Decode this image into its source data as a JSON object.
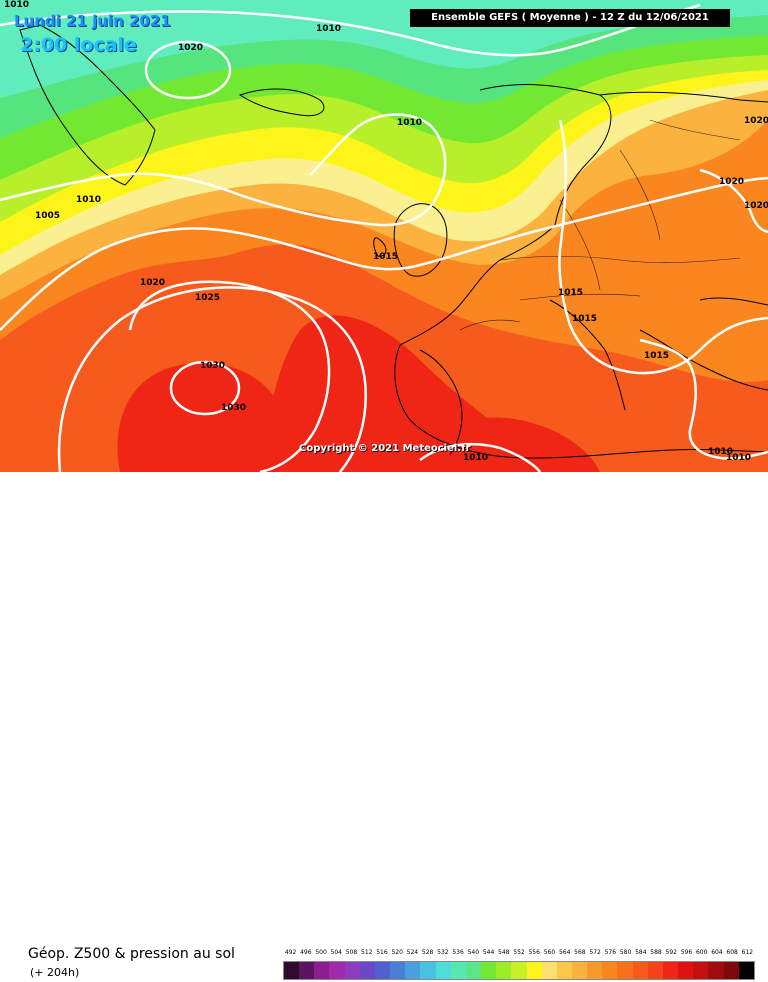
{
  "map": {
    "date_label": "Lundi 21 juin 2021",
    "time_label": "2:00 locale",
    "header": "Ensemble GEFS  ( Moyenne )  -  12 Z du 12/06/2021",
    "copyright": "Copyright © 2021 Meteociel.fr",
    "isobar_labels": [
      "1010",
      "1020",
      "1010",
      "1010",
      "1005",
      "1010",
      "1015",
      "1020",
      "1025",
      "1030",
      "1030",
      "1015",
      "1015",
      "1015",
      "1020",
      "1020",
      "1020",
      "1010",
      "1010",
      "1010"
    ],
    "colors": {
      "cyan": "#61ecbe",
      "green_light": "#56e47f",
      "green": "#73e832",
      "yellow_green": "#b7ef2b",
      "yellow": "#fdf519",
      "light_yellow": "#fbf091",
      "orange_light": "#fbb23f",
      "orange": "#f9861f",
      "orange_red": "#f65b1d",
      "red": "#ef2515"
    }
  },
  "footer": {
    "title": "Géop. Z500 & pression au sol",
    "subtitle": "(+ 204h)"
  },
  "scale": {
    "labels": [
      "492",
      "496",
      "500",
      "504",
      "508",
      "512",
      "516",
      "520",
      "524",
      "528",
      "532",
      "536",
      "540",
      "544",
      "548",
      "552",
      "556",
      "560",
      "564",
      "568",
      "572",
      "576",
      "580",
      "584",
      "588",
      "592",
      "596",
      "600",
      "604",
      "608",
      "612"
    ],
    "colors": [
      "#2d0c2e",
      "#5b1460",
      "#8a1e8f",
      "#a12aab",
      "#8c3cc0",
      "#6a48c8",
      "#5160d0",
      "#4a7fd8",
      "#4aa0de",
      "#4cc0e2",
      "#50dcd8",
      "#56e8b0",
      "#5ce488",
      "#73e832",
      "#9cec2c",
      "#c8f02a",
      "#fdf519",
      "#fbe070",
      "#fbc84a",
      "#fbb23f",
      "#f99a2c",
      "#f9861f",
      "#f6701e",
      "#f65b1d",
      "#f2431a",
      "#ef2515",
      "#de1212",
      "#c40f0f",
      "#a00c0c",
      "#7e0909",
      "#000000"
    ]
  }
}
